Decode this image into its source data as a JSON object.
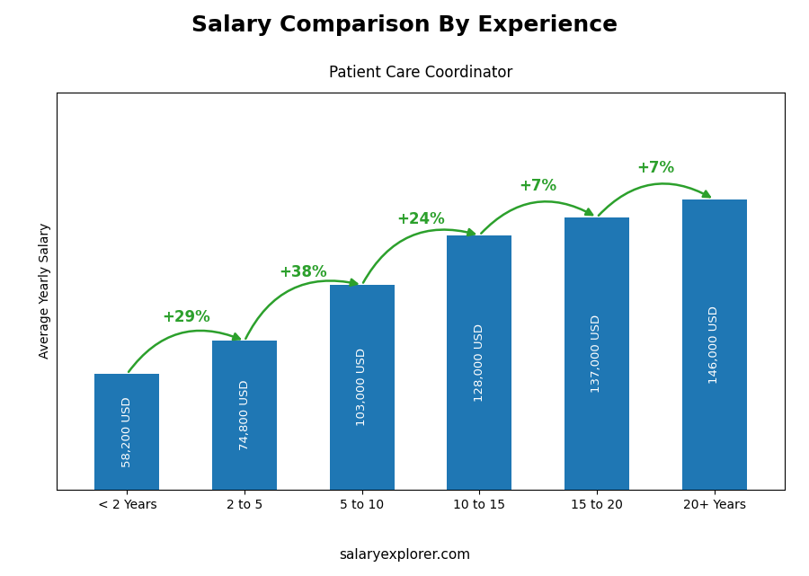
{
  "chart_data": {
    "type": "bar",
    "title": "Salary Comparison By Experience",
    "subtitle": "Patient Care Coordinator",
    "categories": [
      "< 2 Years",
      "2 to 5",
      "5 to 10",
      "10 to 15",
      "15 to 20",
      "20+ Years"
    ],
    "values": [
      58200,
      74800,
      103000,
      128000,
      137000,
      146000
    ],
    "value_labels": [
      "58,200 USD",
      "74,800 USD",
      "103,000 USD",
      "128,000 USD",
      "137,000 USD",
      "146,000 USD"
    ],
    "data_labels": true,
    "pct_changes": [
      "+29%",
      "+38%",
      "+24%",
      "+7%",
      "+7%"
    ],
    "ylabel": "Average Yearly Salary",
    "footer": "salaryexplorer.com",
    "ylim": [
      0,
      200000
    ],
    "tick_labels": "x",
    "grid": false
  }
}
